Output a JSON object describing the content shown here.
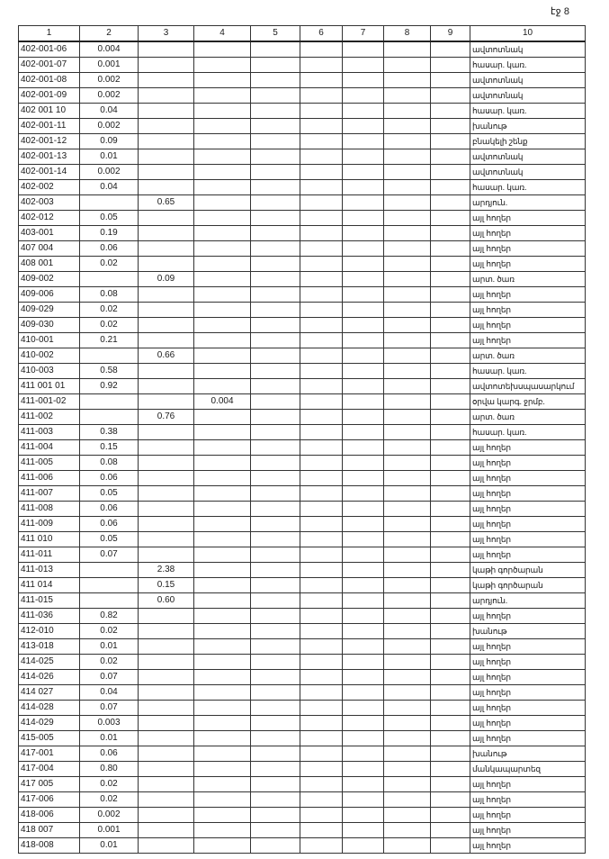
{
  "page_label": "էջ 8",
  "columns": [
    "1",
    "2",
    "3",
    "4",
    "5",
    "6",
    "7",
    "8",
    "9",
    "10"
  ],
  "rows": [
    {
      "code": "402-001-06",
      "c2": "0.004",
      "c3": "",
      "c4": "",
      "desc": "ավտոտնակ"
    },
    {
      "code": "402-001-07",
      "c2": "0.001",
      "c3": "",
      "c4": "",
      "desc": "հասար. կառ."
    },
    {
      "code": "402-001-08",
      "c2": "0.002",
      "c3": "",
      "c4": "",
      "desc": "ավտոտնակ"
    },
    {
      "code": "402-001-09",
      "c2": "0.002",
      "c3": "",
      "c4": "",
      "desc": "ավտոտնակ"
    },
    {
      "code": "402 001 10",
      "c2": "0.04",
      "c3": "",
      "c4": "",
      "desc": "հասար. կառ."
    },
    {
      "code": "402-001-11",
      "c2": "0.002",
      "c3": "",
      "c4": "",
      "desc": "խանութ"
    },
    {
      "code": "402-001-12",
      "c2": "0.09",
      "c3": "",
      "c4": "",
      "desc": "բնակելի շենք"
    },
    {
      "code": "402-001-13",
      "c2": "0.01",
      "c3": "",
      "c4": "",
      "desc": "ավտոտնակ"
    },
    {
      "code": "402-001-14",
      "c2": "0.002",
      "c3": "",
      "c4": "",
      "desc": "ավտոտնակ"
    },
    {
      "code": "402-002",
      "c2": "0.04",
      "c3": "",
      "c4": "",
      "desc": "հասար. կառ."
    },
    {
      "code": "402-003",
      "c2": "",
      "c3": "0.65",
      "c4": "",
      "desc": "արդյուն."
    },
    {
      "code": "402-012",
      "c2": "0.05",
      "c3": "",
      "c4": "",
      "desc": "այլ հողեր"
    },
    {
      "code": "403-001",
      "c2": "0.19",
      "c3": "",
      "c4": "",
      "desc": "այլ հողեր"
    },
    {
      "code": "407 004",
      "c2": "0.06",
      "c3": "",
      "c4": "",
      "desc": "այլ հողեր"
    },
    {
      "code": "408 001",
      "c2": "0.02",
      "c3": "",
      "c4": "",
      "desc": "այլ հողեր"
    },
    {
      "code": "409-002",
      "c2": "",
      "c3": "0.09",
      "c4": "",
      "desc": "արտ. ծառ"
    },
    {
      "code": "409-006",
      "c2": "0.08",
      "c3": "",
      "c4": "",
      "desc": "այլ հողեր"
    },
    {
      "code": "409-029",
      "c2": "0.02",
      "c3": "",
      "c4": "",
      "desc": "այլ հողեր"
    },
    {
      "code": "409-030",
      "c2": "0.02",
      "c3": "",
      "c4": "",
      "desc": "այլ հողեր"
    },
    {
      "code": "410-001",
      "c2": "0.21",
      "c3": "",
      "c4": "",
      "desc": "այլ հողեր"
    },
    {
      "code": "410-002",
      "c2": "",
      "c3": "0.66",
      "c4": "",
      "desc": "արտ. ծառ"
    },
    {
      "code": "410-003",
      "c2": "0.58",
      "c3": "",
      "c4": "",
      "desc": "հասար. կառ."
    },
    {
      "code": "411 001 01",
      "c2": "0.92",
      "c3": "",
      "c4": "",
      "desc": "ավտոտեխսպասարկում"
    },
    {
      "code": "411-001-02",
      "c2": "",
      "c3": "",
      "c4": "0.004",
      "desc": "օրվա կարգ. ջրմբ."
    },
    {
      "code": "411-002",
      "c2": "",
      "c3": "0.76",
      "c4": "",
      "desc": "արտ. ծառ"
    },
    {
      "code": "411-003",
      "c2": "0.38",
      "c3": "",
      "c4": "",
      "desc": "հասար. կառ."
    },
    {
      "code": "411-004",
      "c2": "0.15",
      "c3": "",
      "c4": "",
      "desc": "այլ հողեր"
    },
    {
      "code": "411-005",
      "c2": "0.08",
      "c3": "",
      "c4": "",
      "desc": "այլ հողեր"
    },
    {
      "code": "411-006",
      "c2": "0.06",
      "c3": "",
      "c4": "",
      "desc": "այլ հողեր"
    },
    {
      "code": "411-007",
      "c2": "0.05",
      "c3": "",
      "c4": "",
      "desc": "այլ հողեր"
    },
    {
      "code": "411-008",
      "c2": "0.06",
      "c3": "",
      "c4": "",
      "desc": "այլ հողեր"
    },
    {
      "code": "411-009",
      "c2": "0.06",
      "c3": "",
      "c4": "",
      "desc": "այլ հողեր"
    },
    {
      "code": "411 010",
      "c2": "0.05",
      "c3": "",
      "c4": "",
      "desc": "այլ հողեր"
    },
    {
      "code": "411-011",
      "c2": "0.07",
      "c3": "",
      "c4": "",
      "desc": "այլ հողեր"
    },
    {
      "code": "411-013",
      "c2": "",
      "c3": "2.38",
      "c4": "",
      "desc": "կաթի գործարան"
    },
    {
      "code": "411 014",
      "c2": "",
      "c3": "0.15",
      "c4": "",
      "desc": "կաթի գործարան"
    },
    {
      "code": "411-015",
      "c2": "",
      "c3": "0.60",
      "c4": "",
      "desc": "արդյուն."
    },
    {
      "code": "411-036",
      "c2": "0.82",
      "c3": "",
      "c4": "",
      "desc": "այլ հողեր"
    },
    {
      "code": "412-010",
      "c2": "0.02",
      "c3": "",
      "c4": "",
      "desc": "խանութ"
    },
    {
      "code": "413-018",
      "c2": "0.01",
      "c3": "",
      "c4": "",
      "desc": "այլ հողեր"
    },
    {
      "code": "414-025",
      "c2": "0.02",
      "c3": "",
      "c4": "",
      "desc": "այլ հողեր"
    },
    {
      "code": "414-026",
      "c2": "0.07",
      "c3": "",
      "c4": "",
      "desc": "այլ հողեր"
    },
    {
      "code": "414 027",
      "c2": "0.04",
      "c3": "",
      "c4": "",
      "desc": "այլ հողեր"
    },
    {
      "code": "414-028",
      "c2": "0.07",
      "c3": "",
      "c4": "",
      "desc": "այլ հողեր"
    },
    {
      "code": "414-029",
      "c2": "0.003",
      "c3": "",
      "c4": "",
      "desc": "այլ հողեր"
    },
    {
      "code": "415-005",
      "c2": "0.01",
      "c3": "",
      "c4": "",
      "desc": "այլ հողեր"
    },
    {
      "code": "417-001",
      "c2": "0.06",
      "c3": "",
      "c4": "",
      "desc": "խանութ"
    },
    {
      "code": "417-004",
      "c2": "0.80",
      "c3": "",
      "c4": "",
      "desc": "մանկապարտեզ"
    },
    {
      "code": "417 005",
      "c2": "0.02",
      "c3": "",
      "c4": "",
      "desc": "այլ հողեր"
    },
    {
      "code": "417-006",
      "c2": "0.02",
      "c3": "",
      "c4": "",
      "desc": "այլ հողեր"
    },
    {
      "code": "418-006",
      "c2": "0.002",
      "c3": "",
      "c4": "",
      "desc": "այլ հողեր"
    },
    {
      "code": "418 007",
      "c2": "0.001",
      "c3": "",
      "c4": "",
      "desc": "այլ հողեր"
    },
    {
      "code": "418-008",
      "c2": "0.01",
      "c3": "",
      "c4": "",
      "desc": "այլ հողեր"
    }
  ]
}
